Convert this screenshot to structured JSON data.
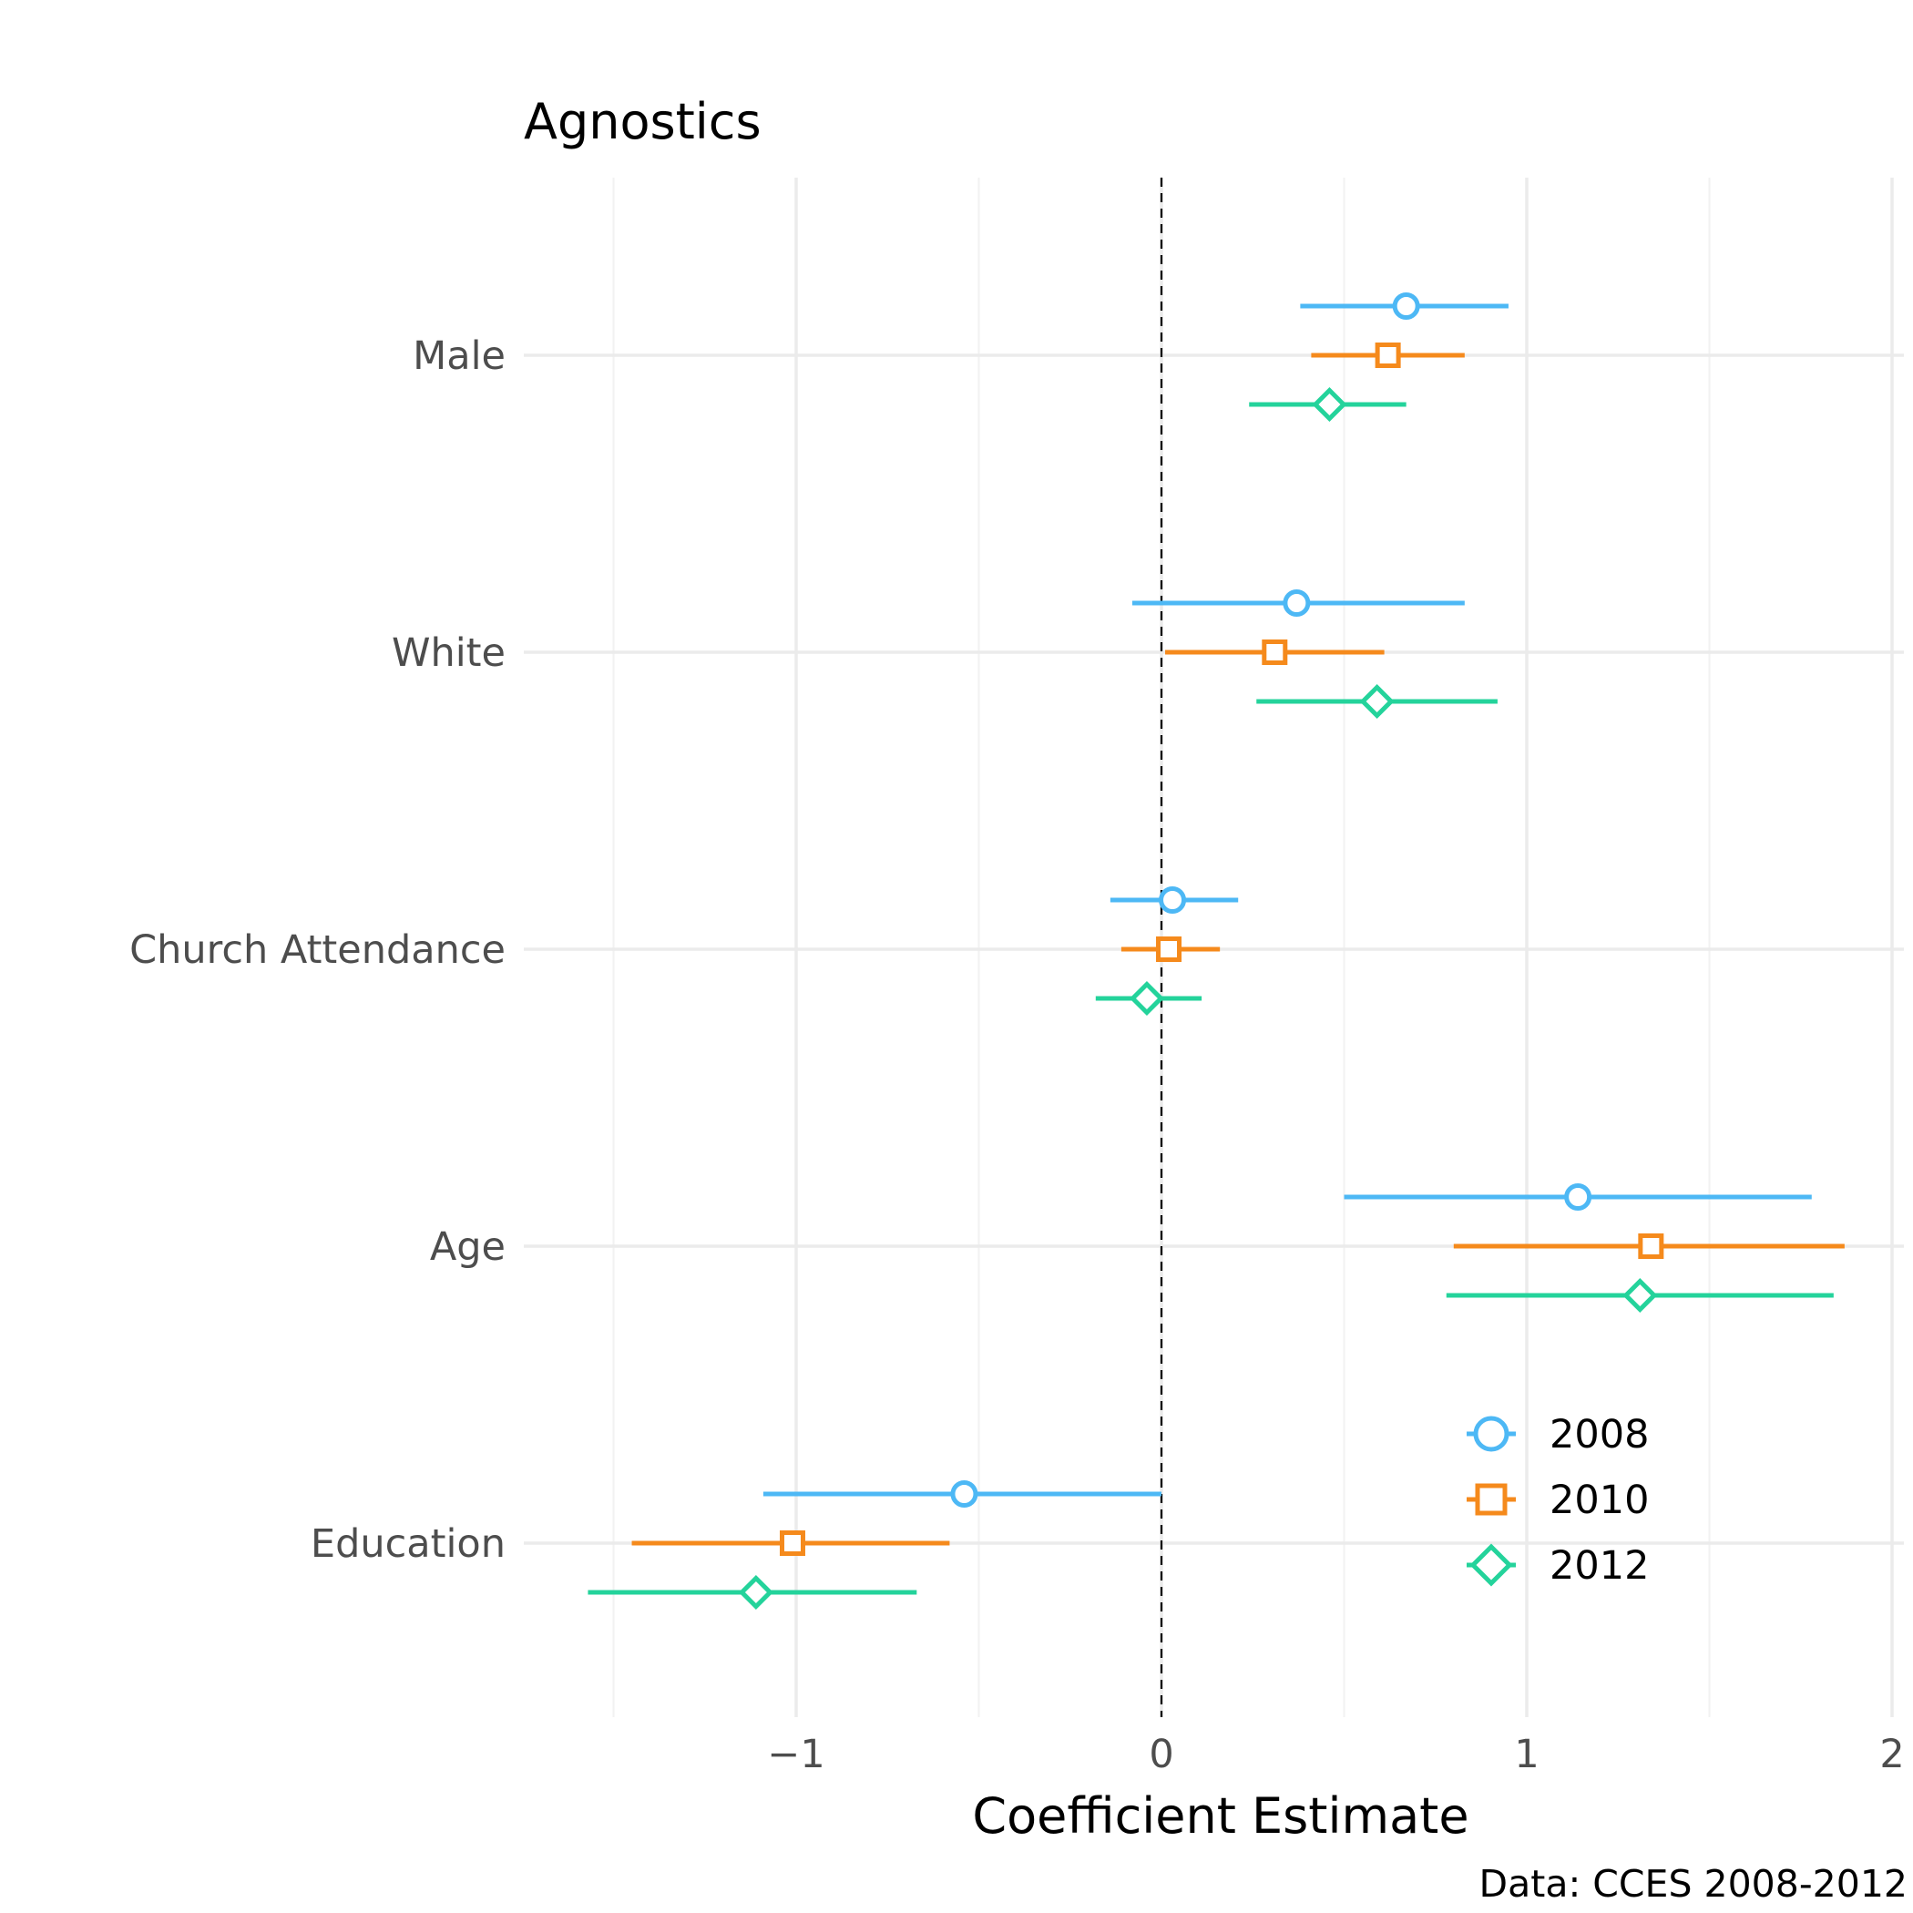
{
  "chart_data": {
    "type": "scatter",
    "title": "Agnostics",
    "xlabel": "Coefficient Estimate",
    "ylabel": "",
    "caption": "Data: CCES 2008-2012",
    "xlim": [
      -1.5,
      2.0
    ],
    "xticks": [
      -1,
      0,
      1,
      2
    ],
    "xtick_labels": [
      "−1",
      "0",
      "1",
      "2"
    ],
    "grid": true,
    "reference_line": 0,
    "legend_position": "bottom-right",
    "categories": [
      "Male",
      "White",
      "Church Attendance",
      "Age",
      "Education"
    ],
    "series": [
      {
        "name": "2008",
        "color": "#4db8f5",
        "marker": "circle",
        "estimates": [
          0.67,
          0.37,
          0.03,
          1.14,
          -0.54
        ],
        "lower": [
          0.38,
          -0.08,
          -0.14,
          0.5,
          -1.09
        ],
        "upper": [
          0.95,
          0.83,
          0.21,
          1.78,
          0.0
        ]
      },
      {
        "name": "2010",
        "color": "#f58a1c",
        "marker": "square",
        "estimates": [
          0.62,
          0.31,
          0.02,
          1.34,
          -1.01
        ],
        "lower": [
          0.41,
          0.01,
          -0.11,
          0.8,
          -1.45
        ],
        "upper": [
          0.83,
          0.61,
          0.16,
          1.87,
          -0.58
        ]
      },
      {
        "name": "2012",
        "color": "#24d39b",
        "marker": "diamond",
        "estimates": [
          0.46,
          0.59,
          -0.04,
          1.31,
          -1.11
        ],
        "lower": [
          0.24,
          0.26,
          -0.18,
          0.78,
          -1.57
        ],
        "upper": [
          0.67,
          0.92,
          0.11,
          1.84,
          -0.67
        ]
      }
    ]
  }
}
